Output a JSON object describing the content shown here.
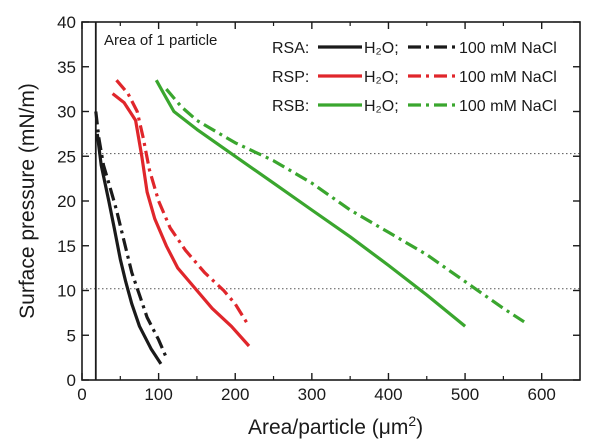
{
  "chart_data": {
    "type": "line",
    "title": "",
    "xlabel": "Area/particle (μm²)",
    "xlabel_main": "Area/particle (",
    "xlabel_unit": "μm",
    "xlabel_exp": "2",
    "xlabel_close": ")",
    "ylabel": "Surface pressure (mN/m)",
    "xlim": [
      0,
      650
    ],
    "ylim": [
      0,
      40
    ],
    "xticks": [
      0,
      100,
      200,
      300,
      400,
      500,
      600
    ],
    "yticks": [
      0,
      5,
      10,
      15,
      20,
      25,
      30,
      35,
      40
    ],
    "grid": false,
    "reference_lines": [
      {
        "axis": "y",
        "value": 25.3,
        "style": "dotted"
      },
      {
        "axis": "y",
        "value": 10.2,
        "style": "dotted"
      }
    ],
    "vertical_marker": {
      "x": 18,
      "label": "Area of 1 particle"
    },
    "legend": {
      "position": "top-right",
      "rows": [
        {
          "label": "RSA:",
          "color": "#1a1a1a"
        },
        {
          "label": "RSP:",
          "color": "#e0262b"
        },
        {
          "label": "RSB:",
          "color": "#3aa62e"
        }
      ],
      "h2o_text": "H₂O;",
      "nacl_text": "100 mM NaCl"
    },
    "series": [
      {
        "group": "RSA",
        "medium": "H2O",
        "color": "#1a1a1a",
        "dash": "solid",
        "points": [
          [
            20,
            27.5
          ],
          [
            25,
            24
          ],
          [
            30,
            22
          ],
          [
            35,
            20
          ],
          [
            42,
            17
          ],
          [
            50,
            13.5
          ],
          [
            57,
            11
          ],
          [
            65,
            8.5
          ],
          [
            75,
            6
          ],
          [
            90,
            3.5
          ],
          [
            103,
            1.8
          ]
        ]
      },
      {
        "group": "RSA",
        "medium": "100 mM NaCl",
        "color": "#1a1a1a",
        "dash": "dashdot",
        "points": [
          [
            18,
            30
          ],
          [
            22,
            27
          ],
          [
            28,
            24
          ],
          [
            35,
            22
          ],
          [
            45,
            19
          ],
          [
            55,
            15.5
          ],
          [
            65,
            12
          ],
          [
            75,
            9.5
          ],
          [
            85,
            7
          ],
          [
            100,
            4.5
          ],
          [
            110,
            2.5
          ]
        ]
      },
      {
        "group": "RSP",
        "medium": "H2O",
        "color": "#e0262b",
        "dash": "solid",
        "points": [
          [
            40,
            32
          ],
          [
            55,
            31
          ],
          [
            70,
            29
          ],
          [
            78,
            25
          ],
          [
            85,
            21
          ],
          [
            95,
            18
          ],
          [
            110,
            15
          ],
          [
            125,
            12.5
          ],
          [
            145,
            10.5
          ],
          [
            170,
            8
          ],
          [
            195,
            6
          ],
          [
            218,
            3.8
          ]
        ]
      },
      {
        "group": "RSP",
        "medium": "100 mM NaCl",
        "color": "#e0262b",
        "dash": "dashdot",
        "points": [
          [
            45,
            33.5
          ],
          [
            60,
            32
          ],
          [
            72,
            30
          ],
          [
            80,
            27
          ],
          [
            88,
            23.5
          ],
          [
            100,
            20
          ],
          [
            115,
            17
          ],
          [
            135,
            14.5
          ],
          [
            160,
            12
          ],
          [
            185,
            10
          ],
          [
            200,
            8.5
          ],
          [
            218,
            6
          ]
        ]
      },
      {
        "group": "RSB",
        "medium": "H2O",
        "color": "#3aa62e",
        "dash": "solid",
        "points": [
          [
            97,
            33.5
          ],
          [
            110,
            31.5
          ],
          [
            120,
            30
          ],
          [
            150,
            28
          ],
          [
            200,
            25
          ],
          [
            250,
            22
          ],
          [
            300,
            19
          ],
          [
            350,
            16
          ],
          [
            400,
            12.8
          ],
          [
            450,
            9.5
          ],
          [
            500,
            6
          ]
        ]
      },
      {
        "group": "RSB",
        "medium": "100 mM NaCl",
        "color": "#3aa62e",
        "dash": "dashdot",
        "points": [
          [
            110,
            32.5
          ],
          [
            130,
            30.5
          ],
          [
            150,
            29
          ],
          [
            200,
            26.5
          ],
          [
            250,
            24.5
          ],
          [
            300,
            22
          ],
          [
            350,
            19
          ],
          [
            400,
            16.5
          ],
          [
            450,
            14
          ],
          [
            500,
            11
          ],
          [
            550,
            8
          ],
          [
            577,
            6.5
          ]
        ]
      }
    ]
  }
}
